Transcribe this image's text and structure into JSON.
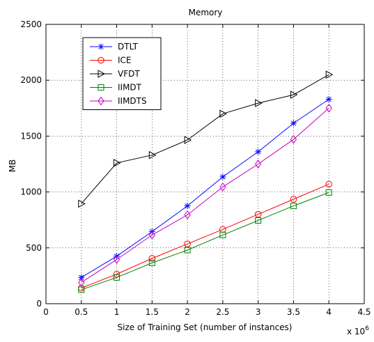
{
  "chart_data": {
    "type": "line",
    "title": "Memory",
    "xlabel": "Size of Training Set (number of instances)",
    "ylabel": "MB",
    "x_multiplier_label": {
      "base": "x 10",
      "exponent": "6"
    },
    "xlim": [
      0,
      4.5
    ],
    "ylim": [
      0,
      2500
    ],
    "xticks": [
      0,
      0.5,
      1,
      1.5,
      2,
      2.5,
      3,
      3.5,
      4,
      4.5
    ],
    "yticks": [
      0,
      500,
      1000,
      1500,
      2000,
      2500
    ],
    "grid": true,
    "legend_position": "top-left",
    "x": [
      0.5,
      1,
      1.5,
      2,
      2.5,
      3,
      3.5,
      4
    ],
    "series": [
      {
        "name": "DTLT",
        "color": "#0000ff",
        "marker": "asterisk",
        "values": [
          235,
          425,
          645,
          875,
          1135,
          1360,
          1615,
          1830
        ]
      },
      {
        "name": "ICE",
        "color": "#ff0000",
        "marker": "circle",
        "values": [
          140,
          265,
          405,
          535,
          665,
          800,
          935,
          1070
        ]
      },
      {
        "name": "VFDT",
        "color": "#000000",
        "marker": "triangle-right",
        "values": [
          895,
          1260,
          1330,
          1465,
          1700,
          1795,
          1870,
          2050
        ]
      },
      {
        "name": "IIMDT",
        "color": "#008000",
        "marker": "square",
        "values": [
          125,
          235,
          365,
          480,
          615,
          745,
          875,
          995
        ]
      },
      {
        "name": "IIMDTS",
        "color": "#bf00bf",
        "marker": "diamond",
        "values": [
          190,
          395,
          615,
          795,
          1045,
          1250,
          1470,
          1750
        ]
      }
    ]
  }
}
